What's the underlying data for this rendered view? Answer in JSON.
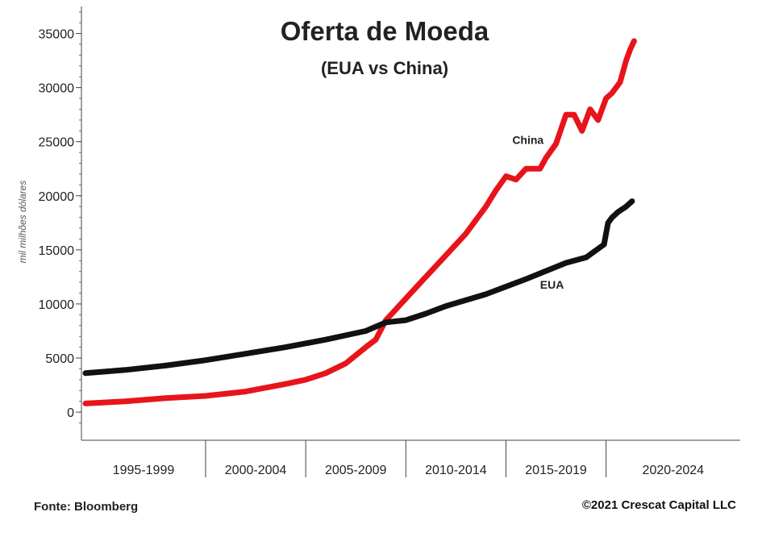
{
  "chart_data": {
    "type": "line",
    "title": "Oferta de Moeda",
    "subtitle": "(EUA vs China)",
    "ylabel": "mil milhões dólares",
    "xlabel": "",
    "ylim": [
      -2600,
      37500
    ],
    "xlim": [
      1993.8,
      2026.7
    ],
    "yticks": [
      0,
      5000,
      10000,
      15000,
      20000,
      25000,
      30000,
      35000
    ],
    "x_categories": [
      {
        "label": "1995-1999",
        "start": 1993.8,
        "end": 2000
      },
      {
        "label": "2000-2004",
        "start": 2000,
        "end": 2005
      },
      {
        "label": "2005-2009",
        "start": 2005,
        "end": 2010
      },
      {
        "label": "2010-2014",
        "start": 2010,
        "end": 2015
      },
      {
        "label": "2015-2019",
        "start": 2015,
        "end": 2020
      },
      {
        "label": "2020-2024",
        "start": 2020,
        "end": 2026.7
      }
    ],
    "grid": false,
    "series": [
      {
        "name": "China",
        "color": "#e8141b",
        "x": [
          1994.0,
          1996.0,
          1998.0,
          2000.0,
          2002.0,
          2004.0,
          2005.0,
          2006.0,
          2007.0,
          2008.0,
          2008.5,
          2009.0,
          2009.5,
          2010.0,
          2010.5,
          2011.0,
          2012.0,
          2013.0,
          2014.0,
          2014.5,
          2015.0,
          2015.5,
          2016.0,
          2016.7,
          2017.0,
          2017.5,
          2018.0,
          2018.4,
          2018.8,
          2019.2,
          2019.6,
          2020.0,
          2020.3,
          2020.7,
          2021.0,
          2021.2,
          2021.4
        ],
        "values": [
          800,
          1000,
          1300,
          1500,
          1900,
          2600,
          3000,
          3600,
          4500,
          6000,
          6700,
          8500,
          9500,
          10500,
          11500,
          12500,
          14500,
          16500,
          19000,
          20500,
          21800,
          21500,
          22500,
          22500,
          23500,
          24800,
          27500,
          27500,
          26000,
          28000,
          27000,
          29000,
          29500,
          30500,
          32500,
          33500,
          34300
        ]
      },
      {
        "name": "EUA",
        "color": "#111111",
        "x": [
          1994.0,
          1996.0,
          1998.0,
          2000.0,
          2002.0,
          2004.0,
          2006.0,
          2008.0,
          2009.0,
          2010.0,
          2011.0,
          2012.0,
          2014.0,
          2016.0,
          2018.0,
          2019.0,
          2019.9,
          2020.1,
          2020.3,
          2020.6,
          2021.0,
          2021.3
        ],
        "values": [
          3600,
          3900,
          4300,
          4800,
          5400,
          6000,
          6700,
          7500,
          8300,
          8500,
          9100,
          9800,
          10900,
          12300,
          13800,
          14300,
          15500,
          17500,
          18000,
          18500,
          19000,
          19500
        ]
      }
    ],
    "annotations": [
      {
        "text": "China",
        "x": 2016.1,
        "y": 24800
      },
      {
        "text": "EUA",
        "x": 2017.3,
        "y": 11400
      }
    ]
  },
  "footer": {
    "source": "Fonte: Bloomberg",
    "copyright": "©2021 Crescat Capital LLC"
  }
}
